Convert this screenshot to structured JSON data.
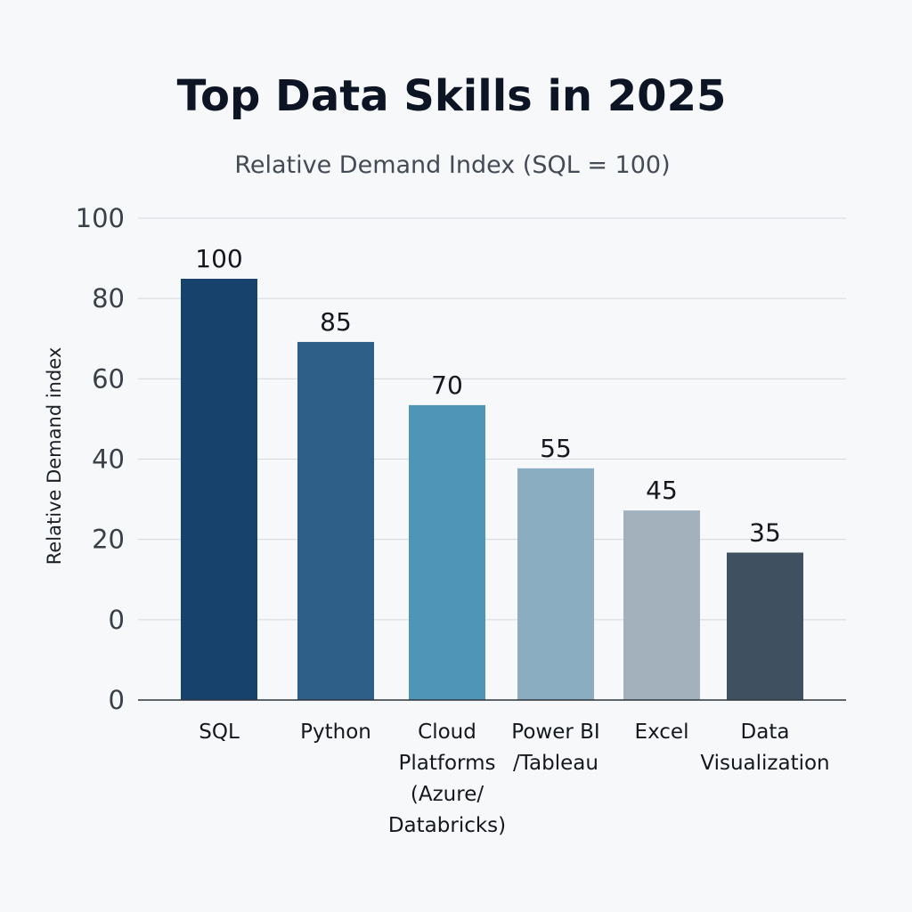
{
  "chart_data": {
    "type": "bar",
    "title": "Top Data Skills in 2025",
    "subtitle": "Relative Demand Index (SQL = 100)",
    "ylabel": "Relative Demand index",
    "xlabel": "",
    "y_tick_labels": [
      "0",
      "0",
      "20",
      "40",
      "60",
      "80",
      "100"
    ],
    "grid": true,
    "categories": [
      [
        "SQL"
      ],
      [
        "Python"
      ],
      [
        "Cloud",
        "Platforms",
        "(Azure/",
        "Databricks)"
      ],
      [
        "Power BI",
        "/Tableau"
      ],
      [
        "Excel"
      ],
      [
        "Data",
        "Visualization"
      ]
    ],
    "values": [
      100,
      85,
      70,
      55,
      45,
      35
    ],
    "colors": [
      "#16426b",
      "#2d5f88",
      "#4e95b8",
      "#8badc2",
      "#a3b1bd",
      "#3f5160"
    ]
  }
}
